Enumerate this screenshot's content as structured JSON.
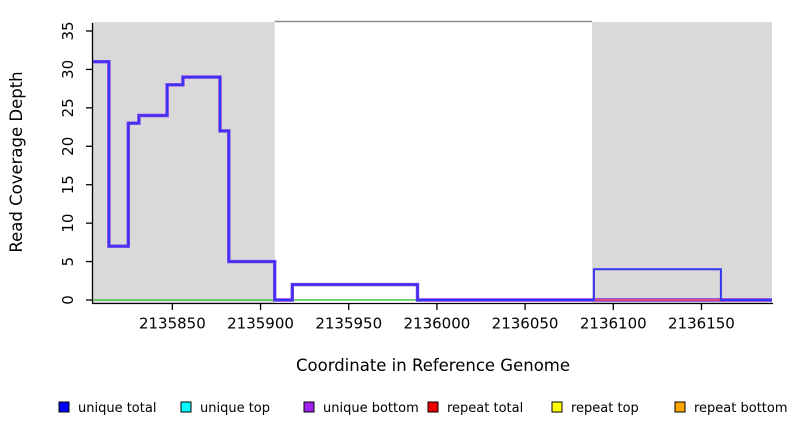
{
  "figure": {
    "x_axis_label": "Coordinate in Reference Genome",
    "y_axis_label": "Read Coverage Depth"
  },
  "chart_data": {
    "type": "line",
    "subtype": "step-coverage-plot",
    "title": "",
    "xlabel": "Coordinate in Reference Genome",
    "ylabel": "Read Coverage Depth",
    "xlim": [
      2135805,
      2136190
    ],
    "ylim": [
      0,
      36
    ],
    "x_ticks": [
      2135850,
      2135900,
      2135950,
      2136000,
      2136050,
      2136100,
      2136150
    ],
    "y_ticks": [
      0,
      5,
      10,
      15,
      20,
      25,
      30,
      35
    ],
    "grid": "off",
    "plot_background": "#ffffff",
    "shade_color": "#d9d9d9",
    "shaded_regions": [
      {
        "x0": 2135805,
        "x1": 2135908
      },
      {
        "x0": 2136088,
        "x1": 2136190
      }
    ],
    "box_top_line": {
      "value": 36,
      "x0": 2135908,
      "x1": 2136088,
      "color": "#8f8f8f"
    },
    "series": [
      {
        "name": "baseline green (unlabeled)",
        "color": "#46c246",
        "width": 1.6,
        "steps": [
          [
            2135805,
            0
          ],
          [
            2135989,
            0
          ]
        ],
        "end": 2135989
      },
      {
        "name": "unique bottom",
        "color": "#8a35ee",
        "width": 3.4,
        "steps": [
          [
            2135805,
            31
          ],
          [
            2135814,
            7
          ],
          [
            2135825,
            23
          ],
          [
            2135831,
            24
          ],
          [
            2135847,
            28
          ],
          [
            2135856,
            29
          ],
          [
            2135877,
            22
          ],
          [
            2135882,
            5
          ],
          [
            2135908,
            0
          ],
          [
            2135918,
            2
          ],
          [
            2135989,
            0
          ]
        ],
        "end": 2136190
      },
      {
        "name": "repeat total",
        "color": "#ef5050",
        "width": 1.6,
        "steps": [
          [
            2136089,
            0
          ],
          [
            2136190,
            0
          ]
        ],
        "end": 2136190
      },
      {
        "name": "unique total",
        "color": "#3636f2",
        "width": 2,
        "steps": [
          [
            2135805,
            31
          ],
          [
            2135814,
            7
          ],
          [
            2135825,
            23
          ],
          [
            2135831,
            24
          ],
          [
            2135847,
            28
          ],
          [
            2135856,
            29
          ],
          [
            2135877,
            22
          ],
          [
            2135882,
            5
          ],
          [
            2135908,
            0
          ],
          [
            2135918,
            2
          ],
          [
            2135989,
            0
          ],
          [
            2136089,
            4
          ],
          [
            2136161,
            0
          ]
        ],
        "end": 2136190
      }
    ],
    "legend_position": "bottom",
    "legend": [
      {
        "label": "unique total",
        "color": "#0000ff"
      },
      {
        "label": "unique top",
        "color": "#00ffff"
      },
      {
        "label": "unique bottom",
        "color": "#a020f0"
      },
      {
        "label": "repeat total",
        "color": "#ee0000"
      },
      {
        "label": "repeat top",
        "color": "#ffff00"
      },
      {
        "label": "repeat bottom",
        "color": "#ffa500"
      }
    ]
  }
}
